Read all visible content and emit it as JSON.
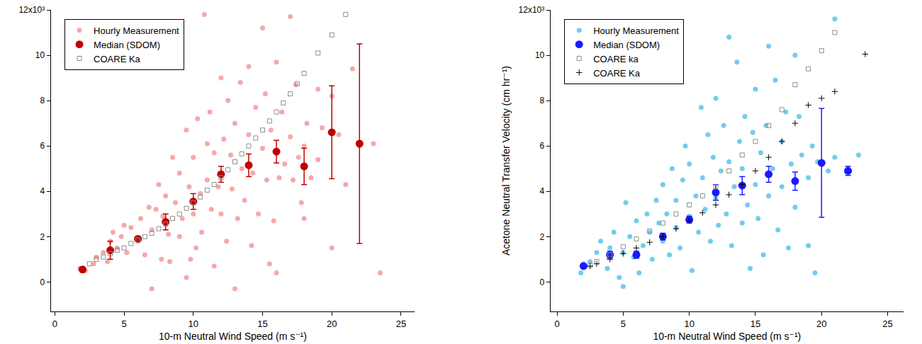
{
  "chart_data": [
    {
      "type": "scatter",
      "x_label": "10-m Neutral Wind Speed (m s⁻¹)",
      "xlim": [
        -0.3,
        26
      ],
      "xticks": [
        0,
        5,
        10,
        15,
        20,
        25
      ],
      "ylim": [
        -1.3,
        12
      ],
      "yticks": [
        0,
        2,
        4,
        6,
        8,
        10,
        {
          "value": 12,
          "label": "12x10³"
        }
      ],
      "legend": "top-left",
      "series": [
        {
          "name": "Hourly Measurement",
          "color": "#f7a8a8",
          "marker": "circle",
          "x": [
            1.8,
            2.2,
            2.8,
            3,
            3.5,
            3.8,
            4,
            4.2,
            4.5,
            4.8,
            5,
            5.2,
            5.5,
            6,
            6.2,
            6.5,
            6.8,
            7,
            7,
            7.3,
            7.5,
            7.7,
            7.8,
            8,
            8.2,
            8.3,
            8.5,
            8.7,
            9,
            9,
            9.2,
            9.5,
            9.5,
            9.7,
            9.8,
            10,
            10,
            10.2,
            10.3,
            10.5,
            10.6,
            10.8,
            11,
            11,
            11.2,
            11.3,
            11.5,
            11.5,
            11.8,
            12,
            12,
            12.2,
            12.4,
            12.5,
            12.7,
            12.8,
            13,
            13,
            13.2,
            13.4,
            13.5,
            13.7,
            14,
            14,
            14.2,
            14.3,
            14.5,
            14.7,
            15,
            15,
            15.2,
            15.3,
            15.5,
            15.6,
            15.8,
            16,
            16,
            16.2,
            16.4,
            16.6,
            17,
            17,
            17.2,
            17.4,
            17.6,
            17.8,
            18,
            18,
            18.2,
            18.5,
            19,
            19,
            19.3,
            20,
            20,
            20.5,
            21,
            21.5,
            22,
            23,
            23.5
          ],
          "values": [
            0.6,
            0.5,
            0.8,
            1.1,
            1.3,
            0.9,
            1.8,
            2.2,
            1.5,
            2.0,
            2.5,
            1.3,
            2.4,
            1.8,
            2.8,
            1.2,
            3.3,
            -0.3,
            2.3,
            3.2,
            4.3,
            1.0,
            2.9,
            3.8,
            2.1,
            0.9,
            5.5,
            3.5,
            2.0,
            4.8,
            2.8,
            0.2,
            6.7,
            4.2,
            1.0,
            3.0,
            5.5,
            1.5,
            7.2,
            3.9,
            2.2,
            11.8,
            4.5,
            6.1,
            7.5,
            3.2,
            0.7,
            5.7,
            4.2,
            9.0,
            3.0,
            6.3,
            1.8,
            8.0,
            5.6,
            4.1,
            -0.3,
            7.0,
            2.8,
            8.8,
            5.0,
            3.6,
            9.5,
            6.5,
            1.6,
            4.8,
            7.7,
            3.0,
            11.2,
            5.9,
            8.3,
            4.5,
            0.8,
            6.7,
            2.7,
            0.4,
            9.7,
            4.6,
            7.5,
            5.2,
            11.7,
            6.4,
            4.5,
            8.7,
            5.5,
            3.5,
            2.8,
            6.0,
            7.0,
            4.6,
            8.5,
            5.4,
            6.8,
            1.5,
            8.2,
            6.5,
            4.3,
            9.4,
            6.0,
            6.1,
            0.4
          ]
        },
        {
          "name": "Median (SDOM)",
          "color": "#c00000",
          "marker": "circle",
          "x": [
            2,
            4,
            6,
            8,
            10,
            12,
            14,
            16,
            18,
            20,
            22
          ],
          "values": [
            0.55,
            1.4,
            1.9,
            2.65,
            3.55,
            4.75,
            5.15,
            5.75,
            5.1,
            6.6,
            6.1
          ],
          "error": [
            0.05,
            0.4,
            0.1,
            0.35,
            0.35,
            0.35,
            0.5,
            0.5,
            0.8,
            2.05,
            4.4
          ]
        },
        {
          "name": "COARE Ka",
          "color": "#8c8c8c",
          "marker": "square-open",
          "x": [
            2.5,
            3,
            3.5,
            4,
            4.5,
            5,
            5.5,
            6,
            6.5,
            7,
            7.5,
            8,
            8.5,
            9,
            9.5,
            10,
            10.5,
            11,
            11.5,
            12,
            12.5,
            13,
            13.5,
            14,
            14.5,
            15,
            15.5,
            16,
            16.5,
            17,
            17.5,
            18,
            19,
            20,
            21
          ],
          "values": [
            0.8,
            1.0,
            1.1,
            1.25,
            1.4,
            1.5,
            1.7,
            1.85,
            2.0,
            2.15,
            2.35,
            2.55,
            2.8,
            3.0,
            3.25,
            3.5,
            3.75,
            4.05,
            4.3,
            4.6,
            4.95,
            5.3,
            5.65,
            6.0,
            6.35,
            6.7,
            7.1,
            7.5,
            7.9,
            8.3,
            8.75,
            9.2,
            10.1,
            10.9,
            11.8
          ]
        }
      ]
    },
    {
      "type": "scatter",
      "x_label": "10-m Neutral Wind Speed (m s⁻¹)",
      "y_label": "Acetone Neutral Transfer Velocity (cm hr⁻¹)",
      "xlim": [
        -0.5,
        26.2
      ],
      "xticks": [
        0,
        5,
        10,
        15,
        20,
        25
      ],
      "ylim": [
        -1.3,
        12
      ],
      "yticks": [
        0,
        2,
        4,
        6,
        8,
        10,
        {
          "value": 12,
          "label": "12x10³"
        }
      ],
      "legend": "top-left",
      "series": [
        {
          "name": "Hourly Measurement",
          "color": "#74cbf0",
          "marker": "circle",
          "x": [
            1.8,
            2,
            2.5,
            3,
            3.3,
            3.8,
            4,
            4.3,
            4.7,
            5,
            5,
            5.2,
            5.5,
            5.8,
            6,
            6.2,
            6.5,
            6.8,
            7,
            7.2,
            7.5,
            7.7,
            8,
            8,
            8.3,
            8.5,
            8.7,
            9,
            9,
            9.3,
            9.5,
            9.7,
            10,
            10,
            10.2,
            10.5,
            10.7,
            10.9,
            11,
            11.2,
            11.4,
            11.6,
            11.8,
            12,
            12,
            12.2,
            12.4,
            12.6,
            12.8,
            13,
            13,
            13.2,
            13.4,
            13.6,
            13.8,
            14,
            14,
            14.2,
            14.4,
            14.6,
            14.8,
            15,
            15,
            15.2,
            15.4,
            15.6,
            15.8,
            16,
            16,
            16.3,
            16.5,
            16.7,
            17,
            17,
            17.3,
            17.5,
            17.7,
            18,
            18,
            18.3,
            18.5,
            19,
            19,
            19.3,
            19.5,
            19.7,
            20,
            20.5,
            21,
            21,
            22,
            22.8
          ],
          "values": [
            0.4,
            0.8,
            0.9,
            1.3,
            1.8,
            0.6,
            1.5,
            2.2,
            0.2,
            -0.2,
            1.3,
            3.5,
            2.0,
            1.1,
            2.7,
            0.4,
            1.6,
            3.0,
            2.2,
            1.0,
            3.6,
            2.6,
            1.8,
            4.3,
            3.0,
            1.2,
            5.0,
            2.4,
            3.6,
            1.5,
            4.5,
            6.0,
            2.9,
            5.2,
            0.5,
            3.8,
            2.2,
            7.7,
            4.6,
            3.2,
            6.5,
            1.8,
            5.5,
            3.7,
            8.1,
            2.5,
            4.9,
            6.9,
            3.0,
            10.8,
            5.3,
            1.6,
            4.2,
            9.7,
            6.2,
            2.6,
            5.0,
            7.3,
            3.4,
            0.6,
            6.6,
            4.3,
            8.5,
            2.8,
            5.7,
            1.2,
            6.9,
            3.8,
            10.4,
            5.0,
            8.9,
            2.3,
            6.2,
            4.2,
            7.5,
            1.5,
            5.2,
            10.0,
            3.3,
            7.3,
            5.6,
            1.6,
            4.6,
            6.0,
            0.4,
            5.3,
            5.2,
            4.9,
            11.6,
            5.5,
            5.0,
            5.6
          ]
        },
        {
          "name": "Median (SDOM)",
          "color": "#1a1aff",
          "marker": "circle",
          "x": [
            2,
            4,
            6,
            8,
            10,
            12,
            14,
            16,
            18,
            20,
            22
          ],
          "values": [
            0.7,
            1.2,
            1.2,
            2.0,
            2.75,
            3.95,
            4.25,
            4.75,
            4.45,
            5.25,
            4.9
          ],
          "error": [
            0.05,
            0.15,
            0.15,
            0.15,
            0.15,
            0.35,
            0.4,
            0.35,
            0.4,
            2.4,
            0.2
          ]
        },
        {
          "name": "COARE ka",
          "color": "#8c8c8c",
          "marker": "square-open",
          "x": [
            2.5,
            3,
            4,
            5,
            6,
            7,
            8,
            9,
            10,
            11,
            12,
            13,
            14,
            15,
            16,
            17,
            18,
            19,
            20,
            21
          ],
          "values": [
            0.75,
            0.9,
            1.2,
            1.55,
            1.9,
            2.25,
            2.6,
            3.0,
            3.4,
            3.8,
            4.2,
            4.9,
            5.6,
            6.2,
            6.9,
            7.6,
            8.7,
            9.4,
            10.2,
            11.0
          ]
        },
        {
          "name": "COARE Ka",
          "color": "#000000",
          "marker": "cross",
          "x": [
            2.5,
            3,
            4,
            5,
            6,
            7,
            8,
            9,
            10,
            11,
            12,
            13,
            14,
            15,
            16,
            17,
            18,
            19,
            20,
            21,
            23.3
          ],
          "values": [
            0.7,
            0.8,
            1.0,
            1.25,
            1.5,
            1.75,
            2.0,
            2.35,
            2.7,
            3.05,
            3.4,
            3.85,
            4.3,
            4.9,
            5.5,
            6.2,
            7.0,
            7.8,
            8.1,
            8.4,
            10.05
          ]
        }
      ]
    }
  ]
}
